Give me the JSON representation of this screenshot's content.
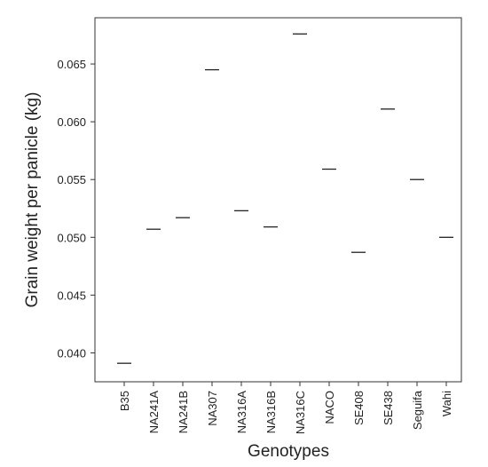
{
  "chart_data": {
    "type": "dash",
    "y_label": "Grain weight per panicle (kg)",
    "x_label": "Genotypes",
    "categories": [
      "B35",
      "NA241A",
      "NA241B",
      "NA307",
      "NA316A",
      "NA316B",
      "NA316C",
      "NACO",
      "SE408",
      "SE438",
      "Seguifa",
      "Wahi"
    ],
    "values": [
      0.0391,
      0.0507,
      0.0517,
      0.0645,
      0.0523,
      0.0509,
      0.0676,
      0.0559,
      0.0487,
      0.0611,
      0.055,
      0.05
    ],
    "color": "#222222",
    "ylim": [
      0.0375,
      0.069
    ],
    "yticks": [
      {
        "value": 0.04,
        "label": "0.040"
      },
      {
        "value": 0.045,
        "label": "0.045"
      },
      {
        "value": 0.05,
        "label": "0.050"
      },
      {
        "value": 0.055,
        "label": "0.055"
      },
      {
        "value": 0.06,
        "label": "0.060"
      },
      {
        "value": 0.065,
        "label": "0.065"
      }
    ]
  }
}
